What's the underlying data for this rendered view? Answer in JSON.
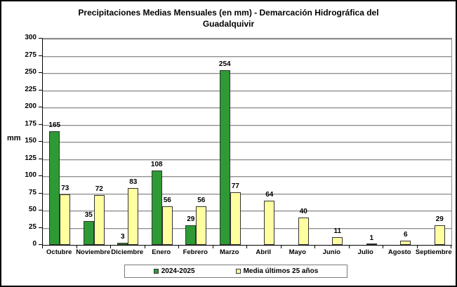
{
  "chart_data": {
    "type": "bar",
    "title": "Precipitaciones Medias Mensuales (en mm) - Demarcación Hidrográfica del Guadalquivir",
    "ylabel": "mm",
    "ylim": [
      0,
      300
    ],
    "ytick_step": 25,
    "grid": true,
    "legend_position": "bottom",
    "categories": [
      "Octubre",
      "Noviembre",
      "Diciembre",
      "Enero",
      "Febrero",
      "Marzo",
      "Abril",
      "Mayo",
      "Junio",
      "Julio",
      "Agosto",
      "Septiembre"
    ],
    "series": [
      {
        "name": "2024-2025",
        "color": "#2e9a35",
        "values": [
          165,
          35,
          3,
          108,
          29,
          254,
          null,
          null,
          null,
          null,
          null,
          null
        ]
      },
      {
        "name": "Media últimos 25 años",
        "color": "#ffffa0",
        "values": [
          73,
          72,
          83,
          56,
          56,
          77,
          64,
          40,
          11,
          1,
          6,
          29
        ]
      }
    ]
  }
}
